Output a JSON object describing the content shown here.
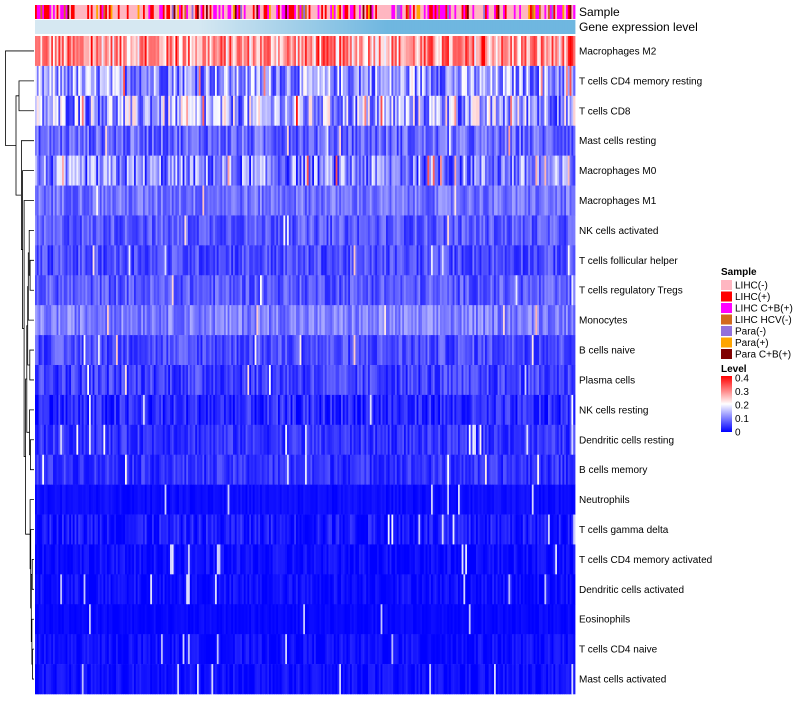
{
  "chart_data": {
    "type": "heatmap",
    "title": "",
    "annotation_tracks": [
      "Sample",
      "Gene expression level"
    ],
    "rows": [
      "Macrophages M2",
      "T cells CD4 memory resting",
      "T cells CD8",
      "Mast cells resting",
      "Macrophages M0",
      "Macrophages M1",
      "NK cells activated",
      "T cells follicular helper",
      "T cells regulatory  Tregs",
      "Monocytes",
      "B cells naive",
      "Plasma cells",
      "NK cells resting",
      "Dendritic cells resting",
      "B cells memory",
      "Neutrophils",
      "T cells gamma delta",
      "T cells CD4 memory activated",
      "Dendritic cells activated",
      "Eosinophils",
      "T cells CD4 naive",
      "Mast cells activated"
    ],
    "row_mean_level": [
      0.28,
      0.12,
      0.13,
      0.08,
      0.1,
      0.09,
      0.07,
      0.06,
      0.07,
      0.1,
      0.06,
      0.05,
      0.03,
      0.04,
      0.04,
      0.01,
      0.02,
      0.01,
      0.01,
      0.005,
      0.01,
      0.01
    ],
    "row_variability": [
      0.1,
      0.09,
      0.11,
      0.05,
      0.09,
      0.04,
      0.04,
      0.04,
      0.04,
      0.04,
      0.04,
      0.04,
      0.04,
      0.03,
      0.03,
      0.01,
      0.03,
      0.02,
      0.02,
      0.01,
      0.02,
      0.02
    ],
    "sample_legend": {
      "title": "Sample",
      "entries": [
        {
          "label": "LIHC(-)",
          "color": "#FFB6C1"
        },
        {
          "label": "LIHC(+)",
          "color": "#FF0000"
        },
        {
          "label": "LIHC C+B(+)",
          "color": "#FF00FF"
        },
        {
          "label": "LIHC HCV(-)",
          "color": "#D2691E"
        },
        {
          "label": "Para(-)",
          "color": "#9370DB"
        },
        {
          "label": "Para(+)",
          "color": "#FFA500"
        },
        {
          "label": "Para C+B(+)",
          "color": "#800000"
        }
      ]
    },
    "level_legend": {
      "title": "Level",
      "ticks": [
        "0.4",
        "0.3",
        "0.2",
        "0.1",
        "0"
      ],
      "tick_values": [
        0.4,
        0.3,
        0.2,
        0.1,
        0
      ],
      "range": [
        0,
        0.4
      ],
      "colors": {
        "low": "#0000FF",
        "mid": "#FFFFFF",
        "high": "#FF0000"
      }
    },
    "expression_track_colors": {
      "low": "#D6E8F2",
      "high": "#6FB7E0"
    },
    "n_columns": 300
  }
}
